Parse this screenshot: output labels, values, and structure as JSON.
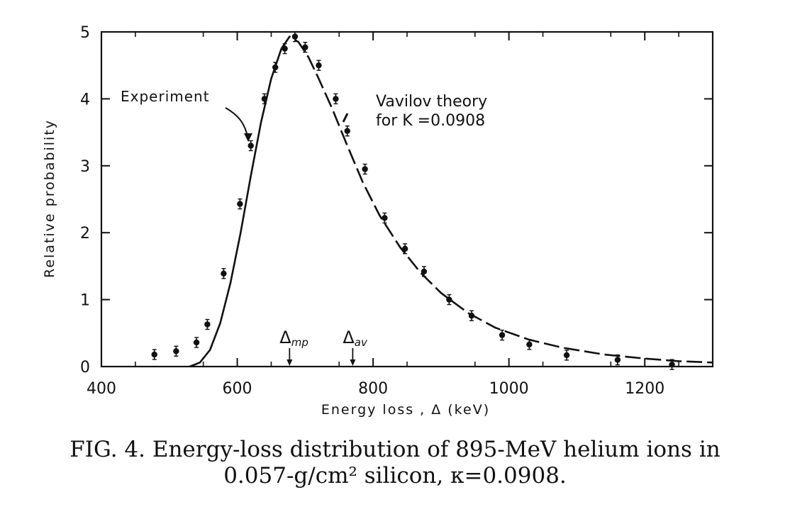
{
  "chart_data": {
    "type": "scatter",
    "xlabel": "Energy loss , Δ  (keV)",
    "ylabel": "Relative probability",
    "xlim": [
      400,
      1300
    ],
    "ylim": [
      0,
      5
    ],
    "x_ticks": [
      400,
      600,
      800,
      1000,
      1200
    ],
    "y_ticks": [
      0,
      1,
      2,
      3,
      4,
      5
    ],
    "grid": false,
    "series": [
      {
        "name": "Experiment",
        "kind": "points",
        "x": [
          478,
          510,
          540,
          556,
          580,
          604,
          620,
          640,
          656,
          670,
          685,
          700,
          720,
          745,
          762,
          788,
          817,
          847,
          875,
          912,
          945,
          990,
          1030,
          1085,
          1160,
          1240
        ],
        "y": [
          0.18,
          0.23,
          0.36,
          0.63,
          1.39,
          2.43,
          3.3,
          4.0,
          4.47,
          4.75,
          4.93,
          4.77,
          4.5,
          4.0,
          3.52,
          2.95,
          2.22,
          1.76,
          1.42,
          1.0,
          0.76,
          0.47,
          0.33,
          0.17,
          0.1,
          0.03
        ]
      },
      {
        "name": "Vavilov theory",
        "kind": "curve",
        "x": [
          530,
          545,
          560,
          575,
          590,
          605,
          620,
          635,
          650,
          665,
          677,
          690,
          705,
          720,
          740,
          760,
          785,
          810,
          840,
          870,
          900,
          940,
          980,
          1030,
          1080,
          1140,
          1200,
          1250,
          1300
        ],
        "y": [
          0.0,
          0.06,
          0.25,
          0.65,
          1.25,
          2.0,
          2.85,
          3.65,
          4.3,
          4.75,
          4.93,
          4.85,
          4.62,
          4.3,
          3.85,
          3.35,
          2.75,
          2.25,
          1.78,
          1.4,
          1.1,
          0.8,
          0.58,
          0.4,
          0.28,
          0.18,
          0.12,
          0.08,
          0.06
        ]
      }
    ],
    "annotations": {
      "experiment_label": "Experiment",
      "theory_line1": "Vavilov theory",
      "theory_line2": "for K =0.0908",
      "delta_mp": {
        "label": "Δmp",
        "x": 677
      },
      "delta_av": {
        "label": "Δav",
        "x": 770
      }
    }
  },
  "caption": {
    "line1": "FIG. 4. Energy-loss distribution of 895-MeV helium ions in",
    "line2": "0.057-g/cm² silicon, κ=0.0908."
  }
}
